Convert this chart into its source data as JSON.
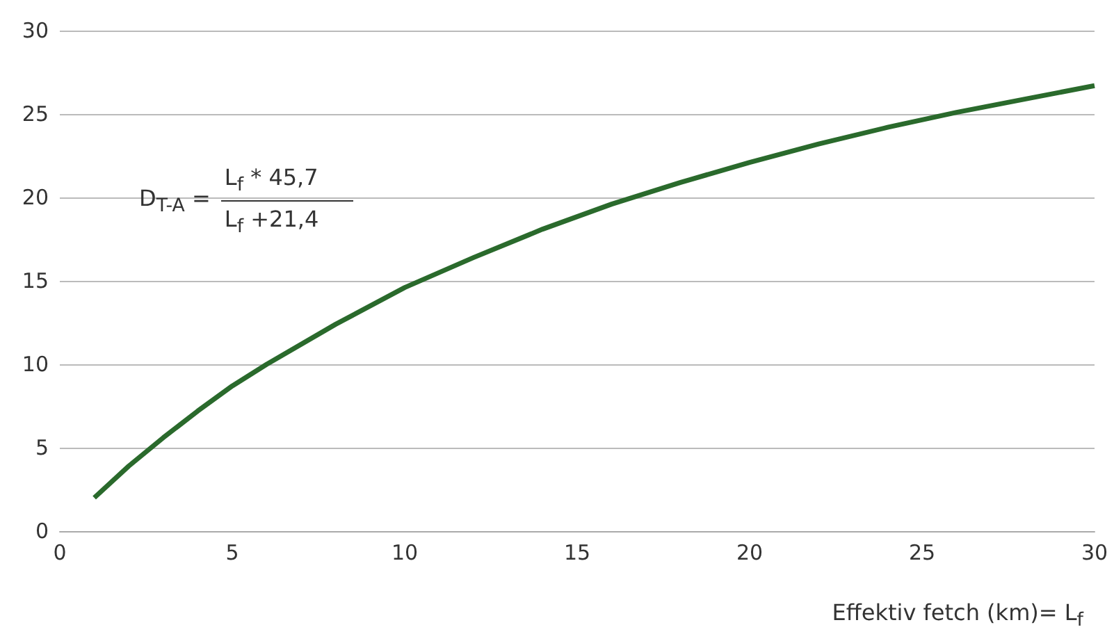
{
  "chart_data": {
    "type": "line",
    "xlabel": "Effektiv fetch (km)= L$_{f}$",
    "annotations": [
      "D$_{T-A}$ =",
      "L$_{f}$ * 45,7",
      "L$_{f}$ +21,4"
    ],
    "x": [
      1,
      2,
      3,
      4,
      5,
      6,
      8,
      10,
      12,
      14,
      16,
      18,
      20,
      22,
      24,
      26,
      28,
      30
    ],
    "series": [
      {
        "color": "#2a6a2c",
        "values": [
          2.0,
          3.9,
          5.6,
          7.2,
          8.7,
          10.0,
          12.4,
          14.6,
          16.4,
          18.1,
          19.6,
          20.9,
          22.1,
          23.2,
          24.2,
          25.1,
          25.9,
          26.7
        ]
      }
    ],
    "xlim": [
      0,
      30
    ],
    "xticks": [
      0,
      5,
      10,
      15,
      20,
      25,
      30
    ],
    "ylim": [
      0,
      30
    ],
    "yticks": [
      0,
      5,
      10,
      15,
      20,
      25,
      30
    ],
    "grid": "y",
    "marker": "none",
    "line_style": "solid"
  }
}
